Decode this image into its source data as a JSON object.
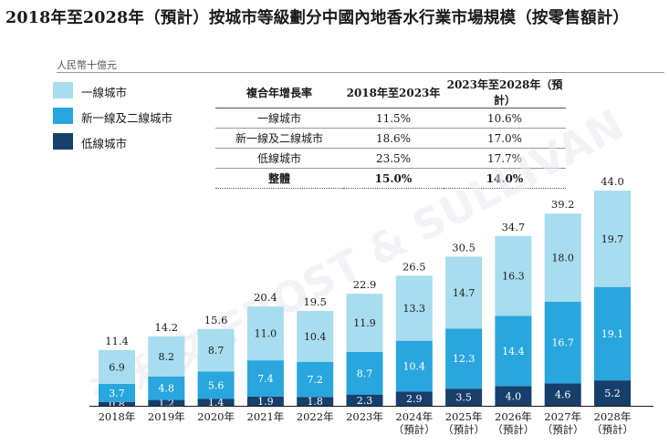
{
  "title": "2018年至2028年（預計）按城市等級劃分中國內地香水行業市場規模（按零售額計）",
  "unit_label": "人民幣十億元",
  "watermark": "沙利文 FROST & SULLIVAN",
  "legend": [
    {
      "label": "一線城市",
      "color": "#a8dcef"
    },
    {
      "label": "新一線及二線城市",
      "color": "#29a6de"
    },
    {
      "label": "低線城市",
      "color": "#173f6b"
    }
  ],
  "cagr_table": {
    "headers": [
      "複合年增長率",
      "2018年至2023年",
      "2023年至2028年（預計）"
    ],
    "rows": [
      [
        "一線城市",
        "11.5%",
        "10.6%"
      ],
      [
        "新一線及二線城市",
        "18.6%",
        "17.0%"
      ],
      [
        "低線城市",
        "23.5%",
        "17.7%"
      ]
    ],
    "total": [
      "整體",
      "15.0%",
      "14.0%"
    ]
  },
  "chart_data": {
    "type": "bar",
    "stacked": true,
    "title": "2018年至2028年（預計）按城市等級劃分中國內地香水行業市場規模（按零售額計）",
    "ylabel": "人民幣十億元",
    "categories": [
      "2018年",
      "2019年",
      "2020年",
      "2021年",
      "2022年",
      "2023年",
      "2024年\n（預計）",
      "2025年\n（預計）",
      "2026年\n（預計）",
      "2027年\n（預計）",
      "2028年\n（預計）"
    ],
    "series": [
      {
        "name": "低線城市",
        "color": "#173f6b",
        "label_color": "#ffffff",
        "values": [
          0.8,
          1.2,
          1.4,
          1.9,
          1.8,
          2.3,
          2.9,
          3.5,
          4.0,
          4.6,
          5.2
        ]
      },
      {
        "name": "新一線及二線城市",
        "color": "#29a6de",
        "label_color": "#ffffff",
        "values": [
          3.7,
          4.8,
          5.6,
          7.4,
          7.2,
          8.7,
          10.4,
          12.3,
          14.4,
          16.7,
          19.1
        ]
      },
      {
        "name": "一線城市",
        "color": "#a8dcef",
        "label_color": "#1a1a1a",
        "values": [
          6.9,
          8.2,
          8.7,
          11.0,
          10.4,
          11.9,
          13.3,
          14.7,
          16.3,
          18.0,
          19.7
        ]
      }
    ],
    "totals": [
      11.4,
      14.2,
      15.6,
      20.4,
      19.5,
      22.9,
      26.5,
      30.5,
      34.7,
      39.2,
      44.0
    ],
    "ylim": [
      0,
      44
    ],
    "grid": false,
    "legend_position": "top-left"
  }
}
